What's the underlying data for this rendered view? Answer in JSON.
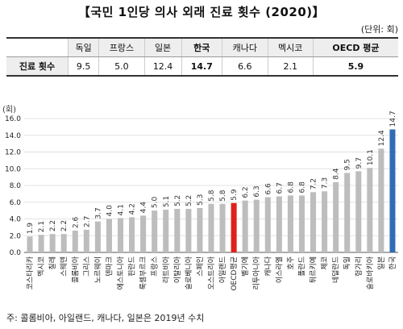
{
  "title": "【국민 1인당 의사 외래 진료 횟수 (2020)】",
  "unit": "(단위: 회)",
  "table": {
    "row_header": "진료 횟수",
    "columns": [
      "독일",
      "프랑스",
      "일본",
      "한국",
      "캐나다",
      "멕시코",
      "OECD 평균"
    ],
    "values": [
      "9.5",
      "5.0",
      "12.4",
      "14.7",
      "6.6",
      "2.1",
      "5.9"
    ]
  },
  "chart_data": {
    "type": "bar",
    "y_unit_label": "(회)",
    "ylim": [
      0,
      16
    ],
    "yticks": [
      "0.0",
      "2.0",
      "4.0",
      "6.0",
      "8.0",
      "10.0",
      "12.0",
      "14.0",
      "16.0"
    ],
    "categories": [
      "코스타리카",
      "멕시코",
      "칠레",
      "스웨덴",
      "콜롬비아",
      "그리스",
      "노르웨이",
      "덴마크",
      "에스토니아",
      "핀란드",
      "룩셈부르크",
      "프랑스",
      "라트비아",
      "이탈리아",
      "슬로베니아",
      "스페인",
      "오스트리아",
      "아일랜드",
      "OECD평균",
      "벨기에",
      "리투아니아",
      "캐나다",
      "이스라엘",
      "호주",
      "폴란드",
      "튀르키예",
      "체코",
      "네덜란드",
      "독일",
      "헝가리",
      "슬로바키아",
      "일본",
      "한국"
    ],
    "values": [
      1.9,
      2.1,
      2.2,
      2.2,
      2.6,
      2.7,
      3.7,
      4.0,
      4.1,
      4.2,
      4.4,
      5.0,
      5.1,
      5.2,
      5.2,
      5.3,
      5.8,
      5.8,
      5.9,
      6.2,
      6.3,
      6.6,
      6.7,
      6.8,
      6.8,
      7.2,
      7.3,
      8.4,
      9.5,
      9.7,
      10.1,
      12.4,
      14.7
    ],
    "value_labels": [
      "1.9",
      "2.1",
      "2.2",
      "2.2",
      "2.6",
      "2.7",
      "3.7",
      "4.0",
      "4.1",
      "4.2",
      "4.4",
      "5.0",
      "5.1",
      "5.2",
      "5.2",
      "5.3",
      "5.8",
      "5.8",
      "5.9",
      "6.2",
      "6.3",
      "6.6",
      "6.7",
      "6.8",
      "6.8",
      "7.2",
      "7.3",
      "8.4",
      "9.5",
      "9.7",
      "10.1",
      "12.4",
      "14.7"
    ],
    "colors": {
      "default": "#bdbdbd",
      "oecd": "#e0201b",
      "korea": "#2f6db3"
    },
    "highlight": {
      "OECD평균": "oecd",
      "한국": "korea"
    },
    "grid": true
  },
  "note": "주: 콜롬비아, 아일랜드, 캐나다, 일본은 2019년 수치"
}
